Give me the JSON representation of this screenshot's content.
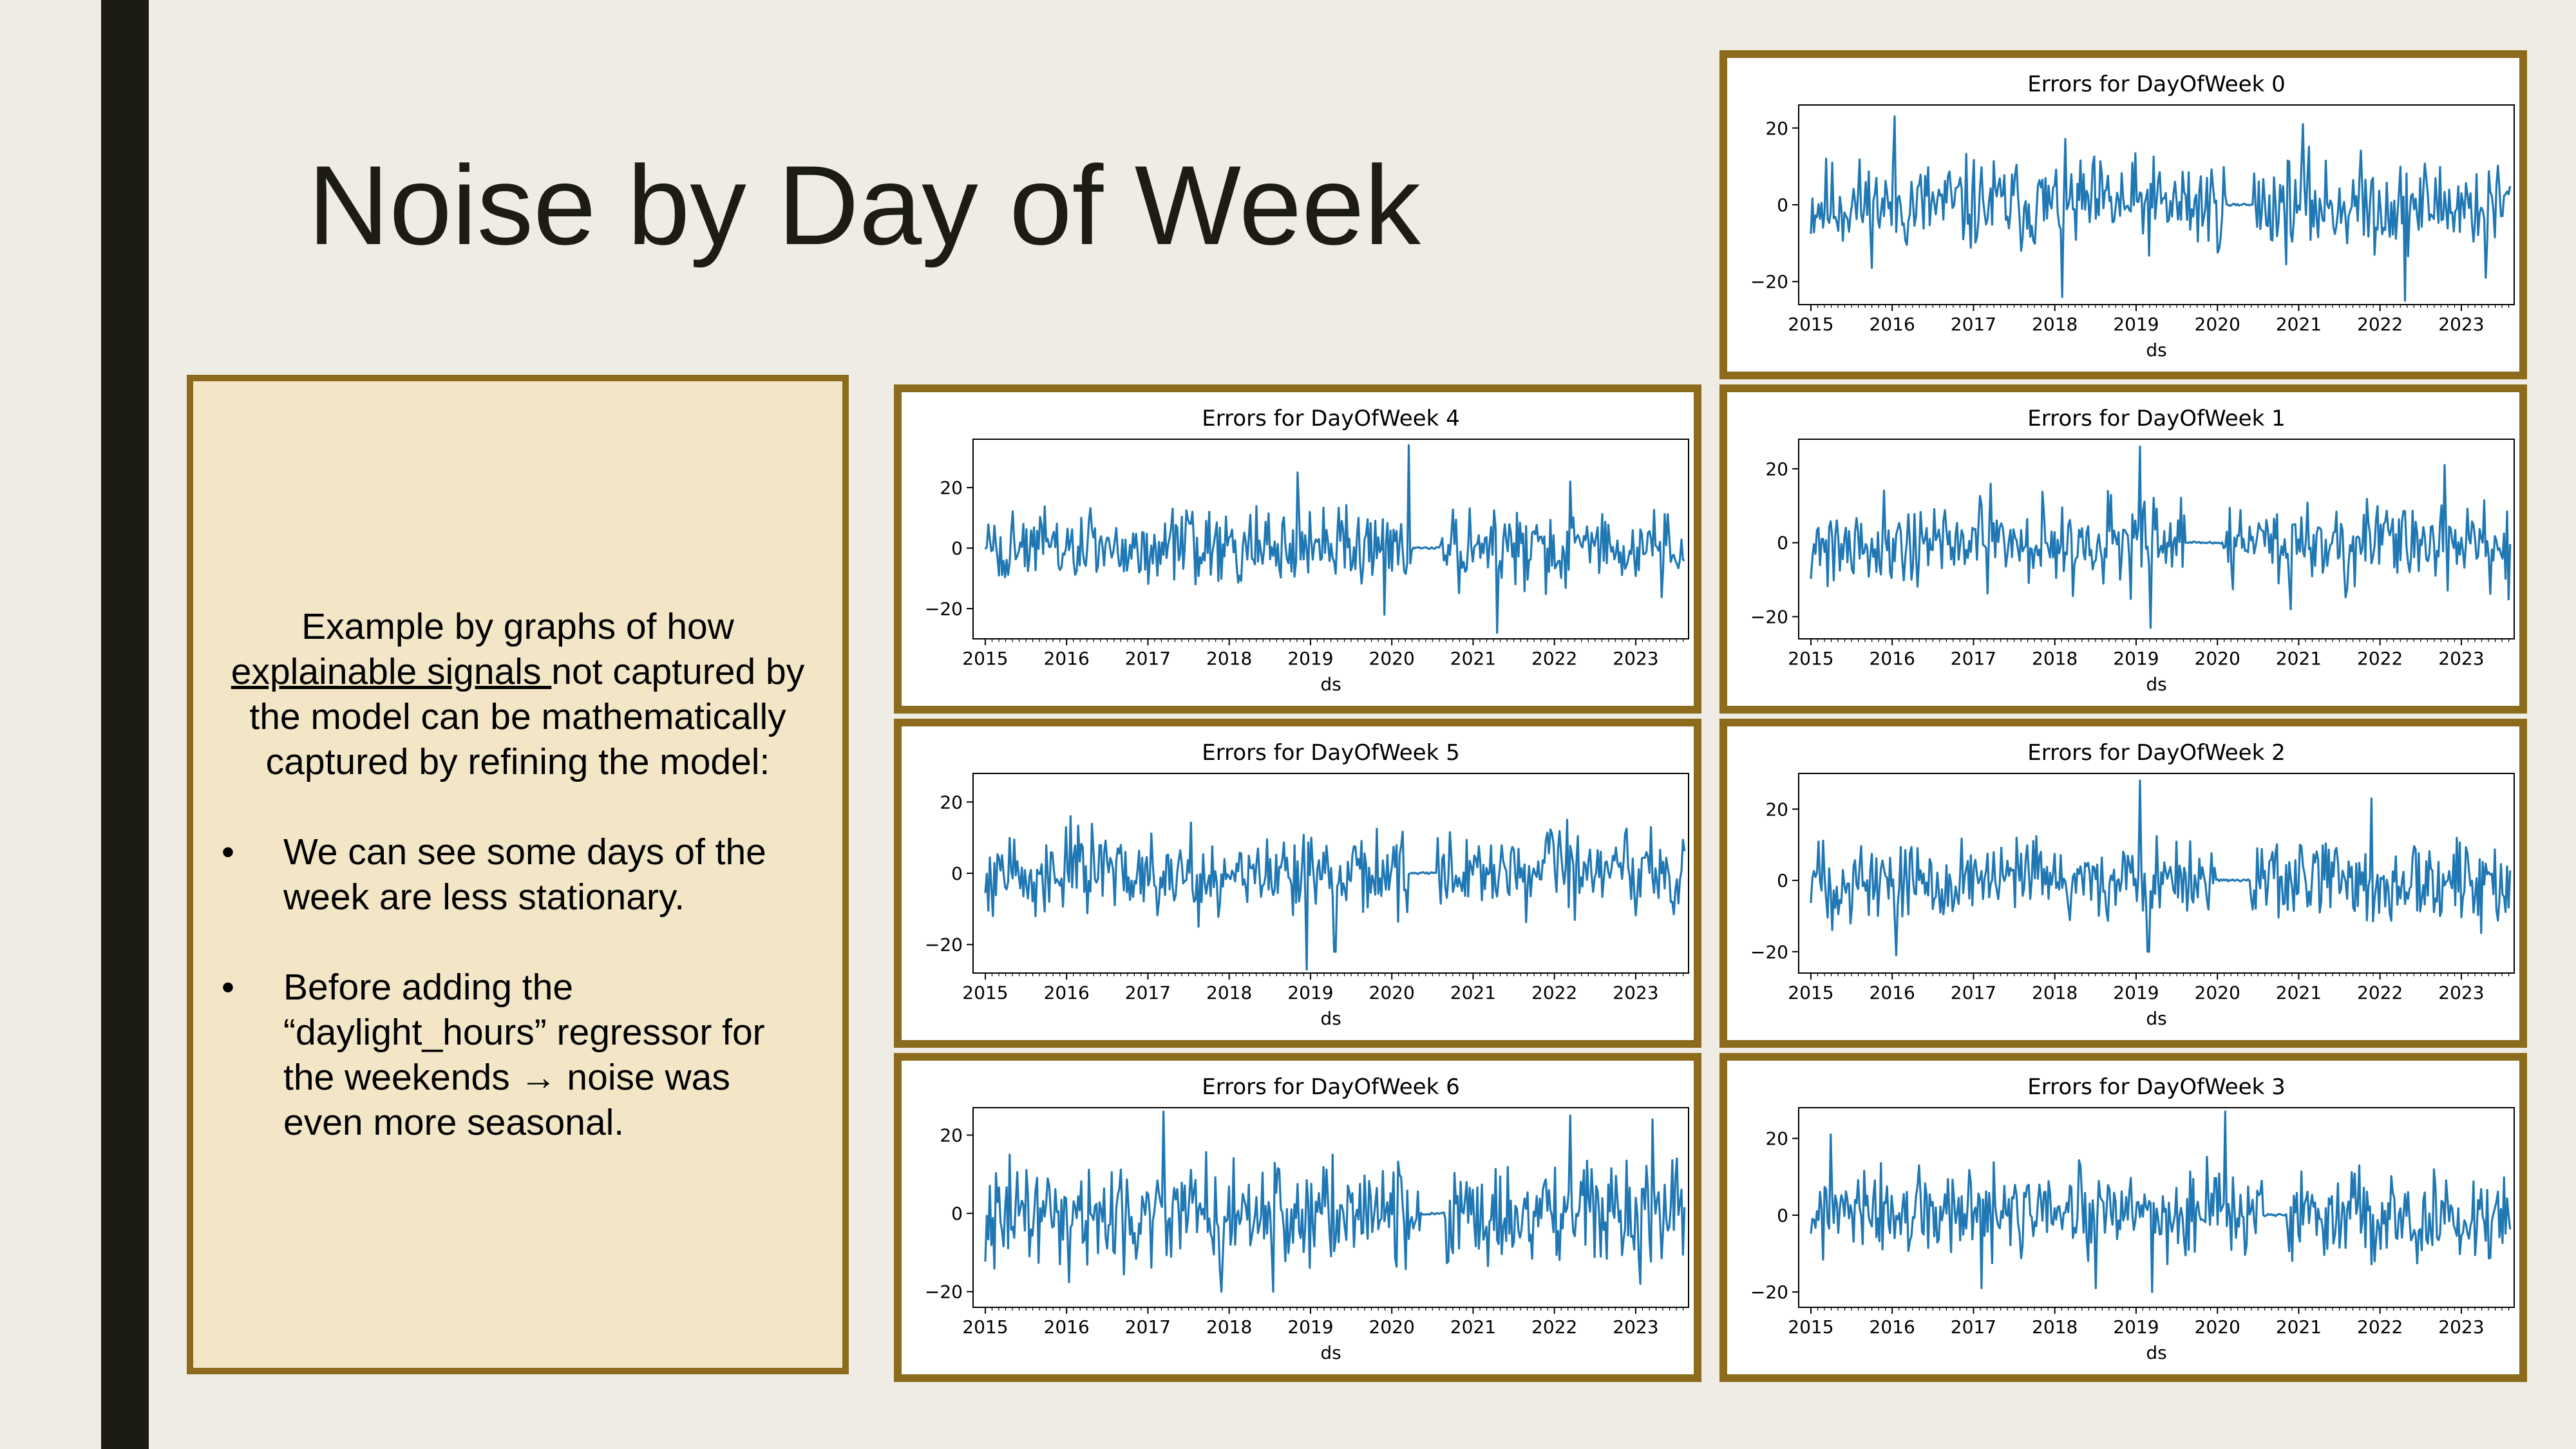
{
  "slide": {
    "title": "Noise by Day of Week",
    "intro_parts": [
      "Example by graphs of how ",
      "explainable signals ",
      "not captured by the model can be mathematically captured by refining the model:"
    ],
    "bullets": [
      "We can see some days of the week are less stationary.",
      "Before adding the “daylight_hours” regressor for the weekends → noise was even more seasonal."
    ]
  },
  "colors": {
    "accent_border": "#8c6c1c",
    "line": "#1f77b4",
    "left_bar": "#1c1c12",
    "text_box_bg": "#f3e6c6"
  },
  "chart_data": [
    {
      "type": "line",
      "title": "Errors for DayOfWeek 0",
      "xlabel": "ds",
      "ylabel": "",
      "xticks": [
        "2015",
        "2016",
        "2017",
        "2018",
        "2019",
        "2020",
        "2021",
        "2022",
        "2023"
      ],
      "yticks": [
        "20",
        "0",
        "−20"
      ],
      "ylim": [
        -26,
        26
      ],
      "xlim": [
        2014.85,
        2023.65
      ],
      "seed": 11,
      "amp": 7.5,
      "gap": [
        2020.1,
        2020.45
      ],
      "spikes": [
        [
          2016.03,
          23
        ],
        [
          2018.1,
          -24
        ],
        [
          2021.05,
          21
        ],
        [
          2022.3,
          -25
        ],
        [
          2023.3,
          -19
        ]
      ]
    },
    {
      "type": "line",
      "title": "Errors for DayOfWeek 4",
      "xlabel": "ds",
      "ylabel": "",
      "xticks": [
        "2015",
        "2016",
        "2017",
        "2018",
        "2019",
        "2020",
        "2021",
        "2022",
        "2023"
      ],
      "yticks": [
        "20",
        "0",
        "−20"
      ],
      "ylim": [
        -30,
        36
      ],
      "xlim": [
        2014.85,
        2023.65
      ],
      "seed": 44,
      "amp": 7.5,
      "gap": [
        2020.25,
        2020.6
      ],
      "spikes": [
        [
          2019.9,
          -22
        ],
        [
          2020.2,
          34
        ],
        [
          2021.3,
          -28
        ],
        [
          2018.85,
          25
        ],
        [
          2022.2,
          22
        ]
      ]
    },
    {
      "type": "line",
      "title": "Errors for DayOfWeek 1",
      "xlabel": "ds",
      "ylabel": "",
      "xticks": [
        "2015",
        "2016",
        "2017",
        "2018",
        "2019",
        "2020",
        "2021",
        "2022",
        "2023"
      ],
      "yticks": [
        "20",
        "0",
        "−20"
      ],
      "ylim": [
        -26,
        28
      ],
      "xlim": [
        2014.85,
        2023.65
      ],
      "seed": 21,
      "amp": 7,
      "gap": [
        2019.6,
        2020.05
      ],
      "spikes": [
        [
          2019.05,
          26
        ],
        [
          2019.18,
          -23
        ],
        [
          2020.9,
          -18
        ],
        [
          2022.8,
          21
        ]
      ]
    },
    {
      "type": "line",
      "title": "Errors for DayOfWeek 5",
      "xlabel": "ds",
      "ylabel": "",
      "xticks": [
        "2015",
        "2016",
        "2017",
        "2018",
        "2019",
        "2020",
        "2021",
        "2022",
        "2023"
      ],
      "yticks": [
        "20",
        "0",
        "−20"
      ],
      "ylim": [
        -28,
        28
      ],
      "xlim": [
        2014.85,
        2023.65
      ],
      "seed": 55,
      "amp": 7,
      "gap": [
        2020.2,
        2020.55
      ],
      "spikes": [
        [
          2018.95,
          -27
        ],
        [
          2016.05,
          16
        ],
        [
          2019.3,
          -22
        ],
        [
          2022.15,
          15
        ]
      ]
    },
    {
      "type": "line",
      "title": "Errors for DayOfWeek 2",
      "xlabel": "ds",
      "ylabel": "",
      "xticks": [
        "2015",
        "2016",
        "2017",
        "2018",
        "2019",
        "2020",
        "2021",
        "2022",
        "2023"
      ],
      "yticks": [
        "20",
        "0",
        "−20"
      ],
      "ylim": [
        -26,
        30
      ],
      "xlim": [
        2014.85,
        2023.65
      ],
      "seed": 33,
      "amp": 7,
      "gap": [
        2020.0,
        2020.4
      ],
      "spikes": [
        [
          2019.05,
          28
        ],
        [
          2016.05,
          -21
        ],
        [
          2019.15,
          -20
        ],
        [
          2021.9,
          23
        ]
      ]
    },
    {
      "type": "line",
      "title": "Errors for DayOfWeek 6",
      "xlabel": "ds",
      "ylabel": "",
      "xticks": [
        "2015",
        "2016",
        "2017",
        "2018",
        "2019",
        "2020",
        "2021",
        "2022",
        "2023"
      ],
      "yticks": [
        "20",
        "0",
        "−20"
      ],
      "ylim": [
        -24,
        27
      ],
      "xlim": [
        2014.85,
        2023.65
      ],
      "seed": 66,
      "amp": 8,
      "gap": [
        2020.35,
        2020.65
      ],
      "spikes": [
        [
          2017.2,
          26
        ],
        [
          2018.55,
          -20
        ],
        [
          2022.2,
          25
        ],
        [
          2023.2,
          24
        ],
        [
          2017.9,
          -20
        ]
      ]
    },
    {
      "type": "line",
      "title": "Errors for DayOfWeek 3",
      "xlabel": "ds",
      "ylabel": "",
      "xticks": [
        "2015",
        "2016",
        "2017",
        "2018",
        "2019",
        "2020",
        "2021",
        "2022",
        "2023"
      ],
      "yticks": [
        "20",
        "0",
        "−20"
      ],
      "ylim": [
        -24,
        28
      ],
      "xlim": [
        2014.85,
        2023.65
      ],
      "seed": 77,
      "amp": 7,
      "gap": [
        2020.55,
        2020.85
      ],
      "spikes": [
        [
          2020.1,
          27
        ],
        [
          2015.25,
          21
        ],
        [
          2017.1,
          -19
        ],
        [
          2019.2,
          -20
        ],
        [
          2018.5,
          -19
        ]
      ]
    }
  ]
}
